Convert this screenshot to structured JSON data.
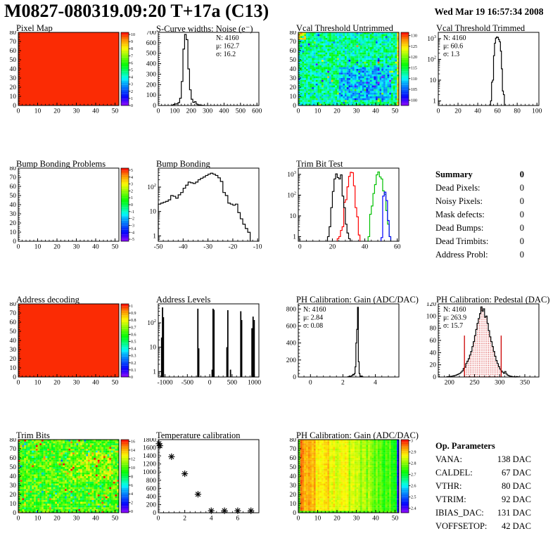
{
  "header": {
    "title": "M0827-080319.09:20 T+17a (C13)",
    "date": "Wed Mar 19 16:57:34 2008"
  },
  "chart_data": [
    {
      "id": "pixel-map",
      "type": "heatmap",
      "title": "Pixel Map",
      "xlim": [
        0,
        52
      ],
      "xticks": [
        0,
        10,
        20,
        30,
        40,
        50
      ],
      "ylim": [
        0,
        80
      ],
      "yticks": [
        0,
        10,
        20,
        30,
        40,
        50,
        60,
        70,
        80
      ],
      "heat": {
        "mode": "solid",
        "value": 10
      },
      "colorbar": {
        "range": [
          0,
          10.3
        ],
        "labels": [
          [
            0,
            "0"
          ],
          [
            1,
            "1"
          ],
          [
            2,
            "2"
          ],
          [
            3,
            "3"
          ],
          [
            4,
            "4"
          ],
          [
            5,
            "5"
          ],
          [
            6,
            "6"
          ],
          [
            7,
            "7"
          ],
          [
            8,
            "8"
          ],
          [
            9,
            "9"
          ],
          [
            10,
            "10"
          ]
        ]
      }
    },
    {
      "id": "scurve-noise",
      "type": "hist",
      "title": "S-Curve widths: Noise (e⁻)",
      "xlim": [
        0,
        612
      ],
      "xticks": [
        0,
        100,
        200,
        300,
        400,
        500,
        600
      ],
      "ylim": [
        0,
        700
      ],
      "yticks": [
        0,
        100,
        200,
        300,
        400,
        500,
        600,
        700
      ],
      "bins": {
        "x0": 80,
        "w": 10,
        "c": [
          2,
          10,
          14,
          16,
          28,
          70,
          230,
          540,
          680,
          630,
          350,
          150,
          60,
          30,
          36,
          14,
          7,
          4,
          2,
          1
        ]
      },
      "stats": {
        "pos": "tr",
        "lines": [
          [
            "N: 4160",
            "#000000"
          ],
          [
            "μ: 162.7",
            "#000000"
          ],
          [
            "σ: 16.2",
            "#000000"
          ]
        ]
      }
    },
    {
      "id": "vcal-untrimmed",
      "type": "heatmap",
      "title": "Vcal Threshold Untrimmed",
      "xlim": [
        0,
        52
      ],
      "xticks": [
        0,
        10,
        20,
        30,
        40,
        50
      ],
      "ylim": [
        0,
        80
      ],
      "yticks": [
        0,
        10,
        20,
        30,
        40,
        50,
        60,
        70,
        80
      ],
      "heat": {
        "mode": "noise",
        "seed": 20108,
        "base": 112.5,
        "spread": 4,
        "blob": {
          "fx0": 0.4,
          "fx1": 0.92,
          "fy0": 0.06,
          "fy1": 0.52,
          "delta": -5
        },
        "edge_right": {
          "v": 124,
          "s": 4
        },
        "warm_tl": true,
        "hot": {
          "p": 0.015,
          "d": 10
        },
        "cold": {
          "p": 0.02,
          "d": -7
        },
        "crange": [
          97.5,
          131.5
        ]
      },
      "colorbar": {
        "range": [
          97.5,
          131.5
        ],
        "labels": [
          [
            100,
            "100"
          ],
          [
            105,
            "105"
          ],
          [
            110,
            "110"
          ],
          [
            115,
            "115"
          ],
          [
            120,
            "120"
          ],
          [
            125,
            "125"
          ],
          [
            130,
            "130"
          ]
        ]
      }
    },
    {
      "id": "vcal-trimmed",
      "type": "hist",
      "title": "Vcal Threshold Trimmed",
      "xlim": [
        0,
        102
      ],
      "xticks": [
        0,
        20,
        40,
        60,
        80,
        100
      ],
      "ylog": true,
      "ymax": 2000,
      "bins": {
        "x0": 53,
        "w": 1,
        "c": [
          1,
          8,
          10,
          150,
          600,
          1050,
          1200,
          1150,
          900,
          700,
          250,
          35,
          3,
          2
        ]
      },
      "stats": {
        "pos": "tl",
        "lines": [
          [
            "N: 4160",
            "#000000"
          ],
          [
            "μ: 60.6",
            "#000000"
          ],
          [
            "σ:  1.3",
            "#000000"
          ]
        ]
      }
    },
    {
      "id": "bump-problems",
      "type": "heatmap",
      "title": "Bump Bonding Problems",
      "xlim": [
        0,
        52
      ],
      "xticks": [
        0,
        10,
        20,
        30,
        40,
        50
      ],
      "ylim": [
        0,
        80
      ],
      "yticks": [
        0,
        10,
        20,
        30,
        40,
        50,
        60,
        70,
        80
      ],
      "heat": {
        "mode": "empty"
      },
      "colorbar": {
        "range": [
          -5.3,
          5.3
        ],
        "labels": [
          [
            -5,
            "-5"
          ],
          [
            -4,
            "-4"
          ],
          [
            -3,
            "-3"
          ],
          [
            -2,
            "-2"
          ],
          [
            -1,
            "-1"
          ],
          [
            0,
            "0"
          ],
          [
            1,
            "1"
          ],
          [
            2,
            "2"
          ],
          [
            3,
            "3"
          ],
          [
            4,
            "4"
          ],
          [
            5,
            "5"
          ]
        ]
      }
    },
    {
      "id": "bump-bonding",
      "type": "hist",
      "title": "Bump Bonding",
      "xlim": [
        -50,
        -9.5
      ],
      "xticks": [
        -50,
        -40,
        -30,
        -20,
        -10
      ],
      "ylog": true,
      "ymax": 600,
      "bins": {
        "x0": -50,
        "w": 1,
        "c": [
          20,
          22,
          24,
          26,
          30,
          45,
          42,
          35,
          48,
          60,
          90,
          120,
          160,
          150,
          140,
          160,
          200,
          230,
          260,
          300,
          340,
          370,
          340,
          300,
          240,
          170,
          60,
          45,
          22,
          20,
          18,
          20,
          9,
          5,
          3,
          2,
          1.4
        ]
      }
    },
    {
      "id": "trim-bit-test",
      "type": "multihist",
      "title": "Trim Bit Test",
      "xlim": [
        -1,
        61
      ],
      "xticks": [
        0,
        20,
        40,
        60
      ],
      "ylog": true,
      "ymax": 2000,
      "series": [
        {
          "name": "trim-bit-14",
          "color": "#00c000",
          "bins": {
            "x0": 42,
            "w": 1,
            "c": [
              1,
              12,
              30,
              120,
              320,
              950,
              1300,
              750,
              600,
              160,
              110,
              18,
              4,
              1
            ]
          }
        },
        {
          "name": "trim-bit-15",
          "color": "#0000ff",
          "bins": {
            "x0": 50,
            "w": 1,
            "c": [
              0.9,
              90,
              140,
              55,
              6,
              1
            ]
          }
        },
        {
          "name": "trim-bit-13",
          "color": "#ff0000",
          "bins": {
            "x0": 23,
            "w": 1,
            "c": [
              0.8,
              1,
              2,
              3,
              45,
              60,
              250,
              800,
              1250,
              1200,
              280,
              25,
              9,
              1.2
            ]
          }
        },
        {
          "name": "trim-bit-0",
          "color": "#000000",
          "bins": {
            "x0": 17,
            "w": 1,
            "c": [
              1,
              3,
              25,
              150,
              600,
              1050,
              700,
              600,
              950,
              90,
              25,
              4,
              1.5,
              0.8
            ]
          }
        }
      ]
    },
    {
      "id": "summary",
      "type": "table",
      "title": "Summary",
      "width": 126,
      "header": {
        "label": "Summary",
        "value": "0"
      },
      "rows": [
        [
          "Dead Pixels:",
          "0"
        ],
        [
          "Noisy Pixels:",
          "0"
        ],
        [
          "Mask defects:",
          "0"
        ],
        [
          "Dead Bumps:",
          "0"
        ],
        [
          "Dead Trimbits:",
          "0"
        ],
        [
          "Address Probl:",
          "0"
        ]
      ]
    },
    {
      "id": "address-decoding",
      "type": "heatmap",
      "title": "Address decoding",
      "xlim": [
        0,
        52
      ],
      "xticks": [
        0,
        10,
        20,
        30,
        40,
        50
      ],
      "ylim": [
        0,
        80
      ],
      "yticks": [
        0,
        10,
        20,
        30,
        40,
        50,
        60,
        70,
        80
      ],
      "heat": {
        "mode": "solid",
        "value": 1
      },
      "colorbar": {
        "range": [
          0,
          1.03
        ],
        "labels": [
          [
            0,
            "0"
          ],
          [
            0.1,
            "0.1"
          ],
          [
            0.2,
            "0.2"
          ],
          [
            0.3,
            "0.3"
          ],
          [
            0.4,
            "0.4"
          ],
          [
            0.5,
            "0.5"
          ],
          [
            0.6,
            "0.6"
          ],
          [
            0.7,
            "0.7"
          ],
          [
            0.8,
            "0.8"
          ],
          [
            0.9,
            "0.9"
          ],
          [
            1,
            "1"
          ]
        ]
      }
    },
    {
      "id": "address-levels",
      "type": "spikes",
      "title": "Address Levels",
      "xlim": [
        -1150,
        1100
      ],
      "xticks": [
        -1000,
        -500,
        0,
        500,
        1000
      ],
      "ylog": true,
      "ymax": 600,
      "data": [
        [
          -1075,
          25
        ],
        [
          -1055,
          430
        ],
        [
          -1035,
          170
        ],
        [
          -265,
          380
        ],
        [
          -245,
          9
        ],
        [
          55,
          1.2
        ],
        [
          75,
          380
        ],
        [
          95,
          340
        ],
        [
          385,
          10
        ],
        [
          405,
          330
        ],
        [
          465,
          1.2
        ],
        [
          695,
          300
        ],
        [
          715,
          130
        ],
        [
          945,
          60
        ],
        [
          970,
          180
        ],
        [
          995,
          130
        ]
      ]
    },
    {
      "id": "ph-gain-hist",
      "type": "hist",
      "title": "PH Calibration: Gain (ADC/DAC)",
      "xlim": [
        -0.75,
        5.45
      ],
      "xticks": [
        0,
        2,
        4
      ],
      "ylim": [
        0,
        860
      ],
      "yticks": [
        0,
        200,
        400,
        600,
        800
      ],
      "bins": {
        "x0": 2.3,
        "w": 0.05,
        "c": [
          3,
          5,
          8,
          10,
          12,
          18,
          30,
          25,
          40,
          120,
          400,
          560,
          820,
          180,
          40,
          8,
          12,
          3,
          1
        ]
      },
      "stats": {
        "pos": "tl",
        "lines": [
          [
            "N: 4160",
            "#000000"
          ],
          [
            "μ: 2.84",
            "#000000"
          ],
          [
            "σ: 0.08",
            "#000000"
          ]
        ]
      }
    },
    {
      "id": "ph-pedestal",
      "type": "hist",
      "title": "PH Calibration: Pedestal (DAC)",
      "xlim": [
        178,
        378
      ],
      "xticks": [
        200,
        250,
        300,
        350
      ],
      "ylim": [
        0,
        120
      ],
      "yticks": [
        0,
        20,
        40,
        60,
        80,
        100,
        120
      ],
      "bins": {
        "x0": 195,
        "w": 2.5,
        "c": [
          0.5,
          0.8,
          1,
          1,
          1.5,
          2,
          2.5,
          3,
          4,
          5,
          6,
          8,
          10,
          14,
          16,
          22,
          26,
          30,
          36,
          42,
          50,
          58,
          68,
          78,
          88,
          96,
          104,
          115,
          108,
          112,
          98,
          100,
          88,
          76,
          66,
          58,
          50,
          42,
          34,
          27,
          22,
          17,
          13,
          10,
          8,
          6,
          9,
          5,
          3,
          2,
          1.5,
          1,
          0.5,
          0.5,
          0,
          0.8,
          0.5
        ]
      },
      "fill": {
        "from": 230,
        "to": 302.5,
        "color": "#cc0000"
      },
      "vlines": [
        {
          "x": 230,
          "h": 68
        },
        {
          "x": 303,
          "h": 68
        }
      ],
      "stats": {
        "pos": "tl",
        "lines": [
          [
            "N: 4160",
            "#000000"
          ],
          [
            "μ: 263.9",
            "#cc0000"
          ],
          [
            "σ: 15.7",
            "#cc0000"
          ]
        ]
      }
    },
    {
      "id": "trim-bits-map",
      "type": "heatmap",
      "title": "Trim Bits",
      "xlim": [
        0,
        52
      ],
      "xticks": [
        0,
        10,
        20,
        30,
        40,
        50
      ],
      "ylim": [
        0,
        80
      ],
      "yticks": [
        0,
        10,
        20,
        30,
        40,
        50,
        60,
        70,
        80
      ],
      "heat": {
        "mode": "noise",
        "seed": 777,
        "base": 9.8,
        "spread": 2.1,
        "blob": {
          "fx0": 0.5,
          "fx1": 0.92,
          "fy0": 0.42,
          "fy1": 0.8,
          "delta": 1.5
        },
        "hot": {
          "p": 0.045,
          "d": 4.5
        },
        "cold": {
          "p": 0.04,
          "d": -3.2
        },
        "crange": [
          -0.3,
          16.4
        ]
      },
      "colorbar": {
        "range": [
          -0.3,
          16.4
        ],
        "labels": [
          [
            0,
            "0"
          ],
          [
            2,
            "2"
          ],
          [
            4,
            "4"
          ],
          [
            6,
            "6"
          ],
          [
            8,
            "8"
          ],
          [
            10,
            "10"
          ],
          [
            12,
            "12"
          ],
          [
            14,
            "14"
          ],
          [
            16,
            "16"
          ]
        ]
      }
    },
    {
      "id": "temperature-calibration",
      "type": "scatter",
      "title": "Temperature calibration",
      "xlim": [
        0,
        7.6
      ],
      "xticks": [
        0,
        2,
        4,
        6
      ],
      "ylim": [
        0,
        1800
      ],
      "yticks": [
        0,
        200,
        400,
        600,
        800,
        1000,
        1200,
        1400,
        1600,
        1800
      ],
      "points": [
        [
          0.05,
          1700
        ],
        [
          0.12,
          1650
        ],
        [
          1,
          1380
        ],
        [
          2,
          960
        ],
        [
          3,
          455
        ],
        [
          4,
          50
        ],
        [
          5,
          50
        ],
        [
          6,
          50
        ],
        [
          7,
          50
        ]
      ]
    },
    {
      "id": "ph-gain-map",
      "type": "heatmap",
      "title": "PH Calibration: Gain (ADC/DAC)",
      "xlim": [
        0,
        52
      ],
      "xticks": [
        0,
        10,
        20,
        30,
        40,
        50
      ],
      "ylim": [
        0,
        80
      ],
      "yticks": [
        0,
        10,
        20,
        30,
        40,
        50,
        60,
        70,
        80
      ],
      "heat": {
        "mode": "hgrad",
        "seed": 4242,
        "g0": 2.94,
        "g1": 2.74,
        "col_noise": 0.03,
        "cell_noise": 0.02,
        "left_col": 2.76,
        "right_col": 2.43,
        "bottom_row": 2.76,
        "crange": [
          2.36,
          3.01
        ]
      },
      "colorbar": {
        "range": [
          2.36,
          3.01
        ],
        "labels": [
          [
            2.4,
            "2.4"
          ],
          [
            2.5,
            "2.5"
          ],
          [
            2.6,
            "2.6"
          ],
          [
            2.7,
            "2.7"
          ],
          [
            2.8,
            "2.8"
          ],
          [
            2.9,
            "2.9"
          ],
          [
            3,
            "3"
          ]
        ]
      }
    },
    {
      "id": "op-parameters",
      "type": "table",
      "title": "Op. Parameters",
      "width": 136,
      "header": {
        "label": "Op. Parameters",
        "value": ""
      },
      "rows": [
        [
          "VANA:",
          "138 DAC"
        ],
        [
          "CALDEL:",
          "67 DAC"
        ],
        [
          "VTHR:",
          "80 DAC"
        ],
        [
          "VTRIM:",
          "92 DAC"
        ],
        [
          "IBIAS_DAC:",
          "131 DAC"
        ],
        [
          "VOFFSETOP:",
          "42 DAC"
        ]
      ]
    }
  ]
}
